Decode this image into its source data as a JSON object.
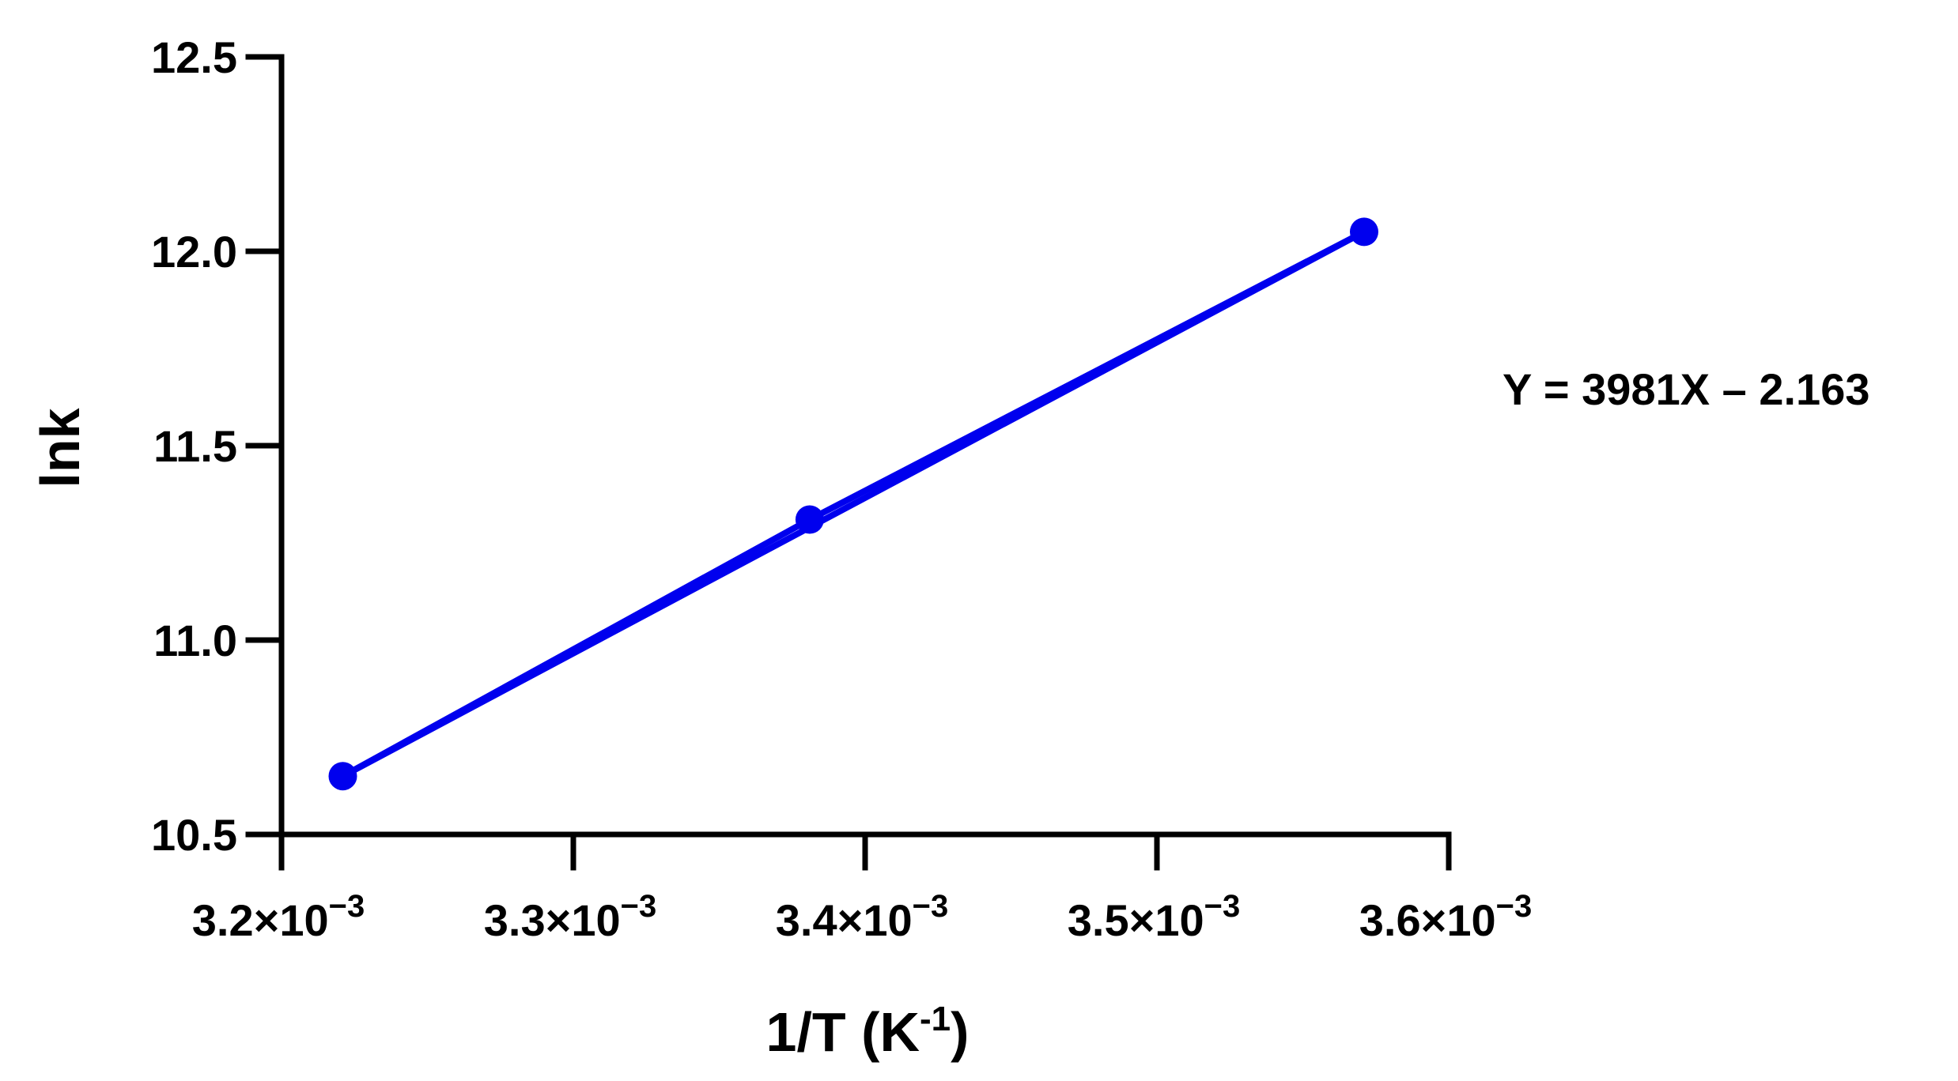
{
  "chart_data": {
    "type": "line",
    "title": "",
    "xlabel": "1/T (K",
    "xlabel_superscript": "-1",
    "xlabel_suffix": ")",
    "ylabel": "lnk",
    "xlim": [
      0.0032,
      0.0036
    ],
    "ylim": [
      10.5,
      12.5
    ],
    "x_ticks": [
      {
        "value": 0.0032,
        "mantissa": "3.2×10",
        "exponent": "−3"
      },
      {
        "value": 0.0033,
        "mantissa": "3.3×10",
        "exponent": "−3"
      },
      {
        "value": 0.0034,
        "mantissa": "3.4×10",
        "exponent": "−3"
      },
      {
        "value": 0.0035,
        "mantissa": "3.5×10",
        "exponent": "−3"
      },
      {
        "value": 0.0036,
        "mantissa": "3.6×10",
        "exponent": "−3"
      }
    ],
    "y_ticks": [
      {
        "value": 10.5,
        "label": "10.5"
      },
      {
        "value": 11.0,
        "label": "11.0"
      },
      {
        "value": 11.5,
        "label": "11.5"
      },
      {
        "value": 12.0,
        "label": "12.0"
      },
      {
        "value": 12.5,
        "label": "12.5"
      }
    ],
    "series": [
      {
        "x": [
          0.003221,
          0.003381,
          0.003571
        ],
        "y": [
          10.65,
          11.31,
          12.05
        ],
        "color": "#0000ee"
      }
    ],
    "fit_line": {
      "x": [
        0.003221,
        0.003571
      ],
      "y": [
        10.65,
        12.05
      ],
      "color": "#0000ee"
    },
    "annotation": "Y = 3981X – 2.163",
    "grid": false,
    "legend": "none"
  }
}
